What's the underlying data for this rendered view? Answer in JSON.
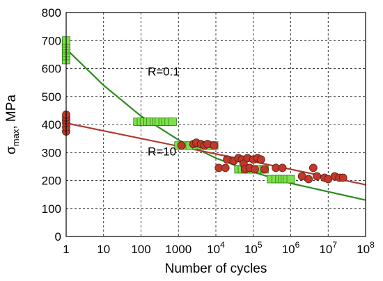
{
  "chart_data": {
    "type": "scatter",
    "x_scale": "log",
    "xlim": [
      1,
      100000000
    ],
    "ylim": [
      0,
      800
    ],
    "xlabel": "Number of cycles",
    "ylabel_main": "σ",
    "ylabel_sub": "max",
    "ylabel_rest": ", MPa",
    "grid": true,
    "x_ticks": [
      {
        "value": 1,
        "base": "1",
        "exp": ""
      },
      {
        "value": 10,
        "base": "10",
        "exp": ""
      },
      {
        "value": 100,
        "base": "100",
        "exp": ""
      },
      {
        "value": 1000,
        "base": "1000",
        "exp": ""
      },
      {
        "value": 10000,
        "base": "10",
        "exp": "4"
      },
      {
        "value": 100000,
        "base": "10",
        "exp": "5"
      },
      {
        "value": 1000000,
        "base": "10",
        "exp": "6"
      },
      {
        "value": 10000000,
        "base": "10",
        "exp": "7"
      },
      {
        "value": 100000000,
        "base": "10",
        "exp": "8"
      }
    ],
    "y_ticks": [
      0,
      100,
      200,
      300,
      400,
      500,
      600,
      700,
      800
    ],
    "annotations": [
      {
        "text": "R=0.1",
        "x": 150,
        "y": 575
      },
      {
        "text": "R=10",
        "x": 150,
        "y": 290
      }
    ],
    "series": [
      {
        "key": "r01",
        "marker": "square",
        "color": "#7ee04a",
        "edge": "#2e7d1a",
        "points": [
          [
            1,
            630
          ],
          [
            1,
            645
          ],
          [
            1,
            655
          ],
          [
            1,
            665
          ],
          [
            1,
            672
          ],
          [
            1,
            680
          ],
          [
            1,
            690
          ],
          [
            1,
            700
          ],
          [
            80,
            410
          ],
          [
            100,
            410
          ],
          [
            120,
            410
          ],
          [
            150,
            410
          ],
          [
            180,
            410
          ],
          [
            220,
            410
          ],
          [
            260,
            410
          ],
          [
            300,
            410
          ],
          [
            380,
            410
          ],
          [
            450,
            410
          ],
          [
            550,
            410
          ],
          [
            700,
            410
          ],
          [
            1000,
            325
          ],
          [
            1500,
            325
          ],
          [
            2000,
            325
          ],
          [
            3000,
            325
          ],
          [
            4000,
            325
          ],
          [
            5000,
            325
          ],
          [
            7000,
            325
          ],
          [
            9000,
            325
          ],
          [
            40000,
            240
          ],
          [
            50000,
            240
          ],
          [
            60000,
            240
          ],
          [
            80000,
            240
          ],
          [
            100000,
            240
          ],
          [
            130000,
            240
          ],
          [
            160000,
            240
          ],
          [
            200000,
            240
          ],
          [
            300000,
            205
          ],
          [
            400000,
            205
          ],
          [
            500000,
            205
          ],
          [
            600000,
            205
          ],
          [
            700000,
            205
          ],
          [
            800000,
            205
          ],
          [
            1000000,
            205
          ]
        ]
      },
      {
        "key": "r10",
        "marker": "circle",
        "color": "#c0392b",
        "edge": "#5a1a10",
        "points": [
          [
            1,
            375
          ],
          [
            1,
            390
          ],
          [
            1,
            405
          ],
          [
            1,
            415
          ],
          [
            1,
            425
          ],
          [
            1,
            435
          ],
          [
            1200,
            325
          ],
          [
            2500,
            330
          ],
          [
            3000,
            335
          ],
          [
            4000,
            330
          ],
          [
            5000,
            325
          ],
          [
            6000,
            330
          ],
          [
            9000,
            325
          ],
          [
            12000,
            245
          ],
          [
            18000,
            245
          ],
          [
            20000,
            275
          ],
          [
            30000,
            270
          ],
          [
            40000,
            280
          ],
          [
            50000,
            275
          ],
          [
            55000,
            260
          ],
          [
            60000,
            240
          ],
          [
            70000,
            280
          ],
          [
            80000,
            245
          ],
          [
            100000,
            275
          ],
          [
            110000,
            240
          ],
          [
            130000,
            280
          ],
          [
            160000,
            275
          ],
          [
            200000,
            240
          ],
          [
            400000,
            245
          ],
          [
            600000,
            245
          ],
          [
            2000000,
            215
          ],
          [
            3000000,
            205
          ],
          [
            4000000,
            245
          ],
          [
            5000000,
            215
          ],
          [
            8000000,
            210
          ],
          [
            10000000,
            205
          ],
          [
            15000000,
            215
          ],
          [
            20000000,
            210
          ],
          [
            25000000,
            210
          ]
        ]
      }
    ],
    "fit_lines": [
      {
        "key": "r01-fit",
        "color": "#2e8b1e",
        "points": [
          [
            1,
            670
          ],
          [
            10,
            540
          ],
          [
            100,
            430
          ],
          [
            1000,
            345
          ],
          [
            10000,
            280
          ],
          [
            100000,
            230
          ],
          [
            1000000,
            190
          ],
          [
            10000000,
            160
          ],
          [
            100000000,
            130
          ]
        ]
      },
      {
        "key": "r10-fit",
        "color": "#b03a2e",
        "points": [
          [
            1,
            405
          ],
          [
            100000000,
            185
          ]
        ]
      }
    ]
  }
}
